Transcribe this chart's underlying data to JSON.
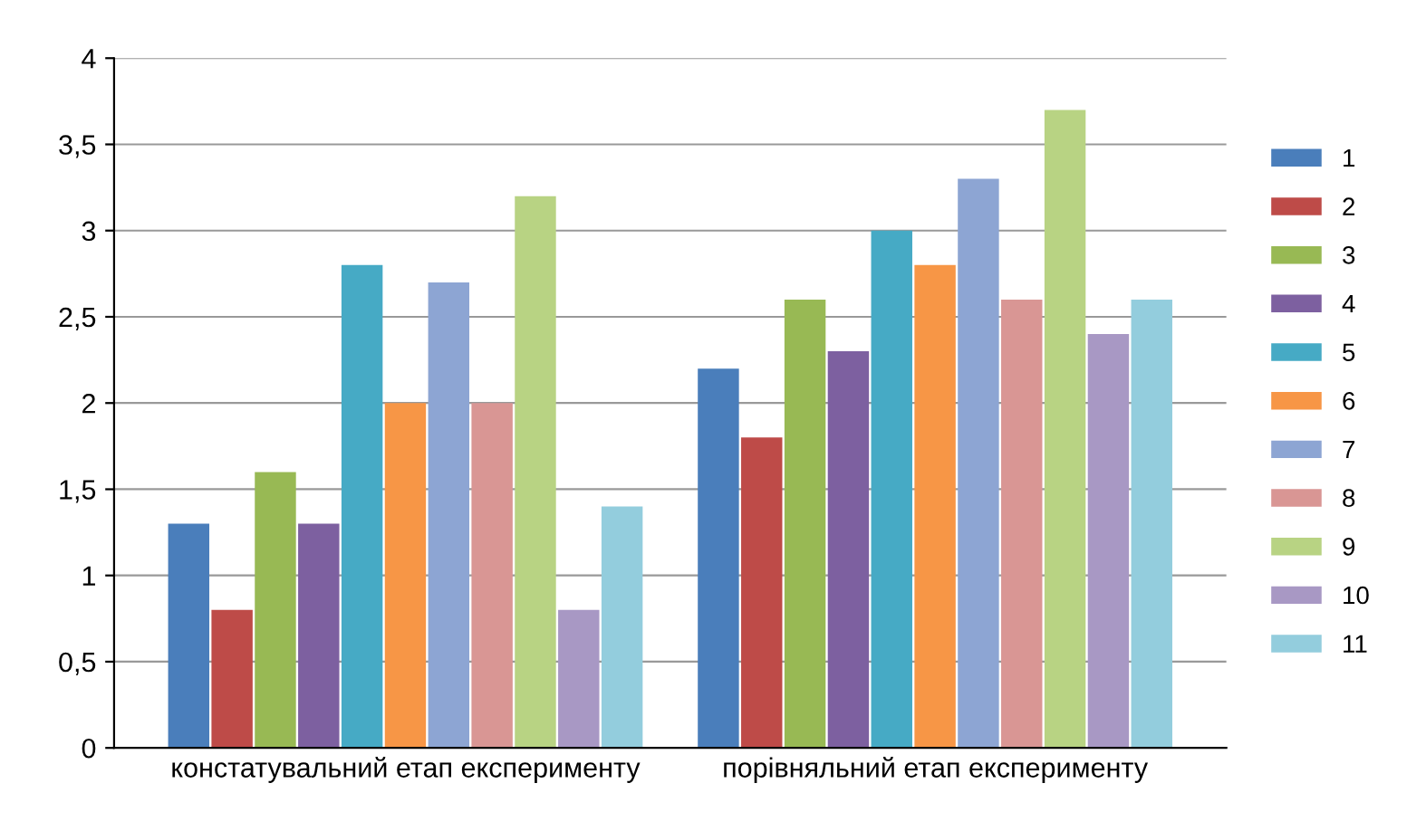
{
  "chart_data": {
    "type": "bar",
    "categories": [
      "констатувальний етап експерименту",
      "порівняльний етап експерименту"
    ],
    "series": [
      {
        "name": "1",
        "color": "#4a7ebb",
        "values": [
          1.3,
          2.2
        ]
      },
      {
        "name": "2",
        "color": "#be4b48",
        "values": [
          0.8,
          1.8
        ]
      },
      {
        "name": "3",
        "color": "#98b954",
        "values": [
          1.6,
          2.6
        ]
      },
      {
        "name": "4",
        "color": "#7d60a0",
        "values": [
          1.3,
          2.3
        ]
      },
      {
        "name": "5",
        "color": "#46aac5",
        "values": [
          2.8,
          3.0
        ]
      },
      {
        "name": "6",
        "color": "#f79646",
        "values": [
          2.0,
          2.8
        ]
      },
      {
        "name": "7",
        "color": "#8da5d3",
        "values": [
          2.7,
          3.3
        ]
      },
      {
        "name": "8",
        "color": "#d99694",
        "values": [
          2.0,
          2.6
        ]
      },
      {
        "name": "9",
        "color": "#b8d383",
        "values": [
          3.2,
          3.7
        ]
      },
      {
        "name": "10",
        "color": "#a898c4",
        "values": [
          0.8,
          2.4
        ]
      },
      {
        "name": "11",
        "color": "#93cddd",
        "values": [
          1.4,
          2.6
        ]
      }
    ],
    "ylim": [
      0,
      4
    ],
    "yticks": [
      0,
      {
        "value": 0.5,
        "label": "0,5"
      },
      1,
      {
        "value": 1.5,
        "label": "1,5"
      },
      2,
      {
        "value": 2.5,
        "label": "2,5"
      },
      3,
      {
        "value": 3.5,
        "label": "3,5"
      },
      4
    ],
    "grid": "y",
    "legend": "right"
  }
}
